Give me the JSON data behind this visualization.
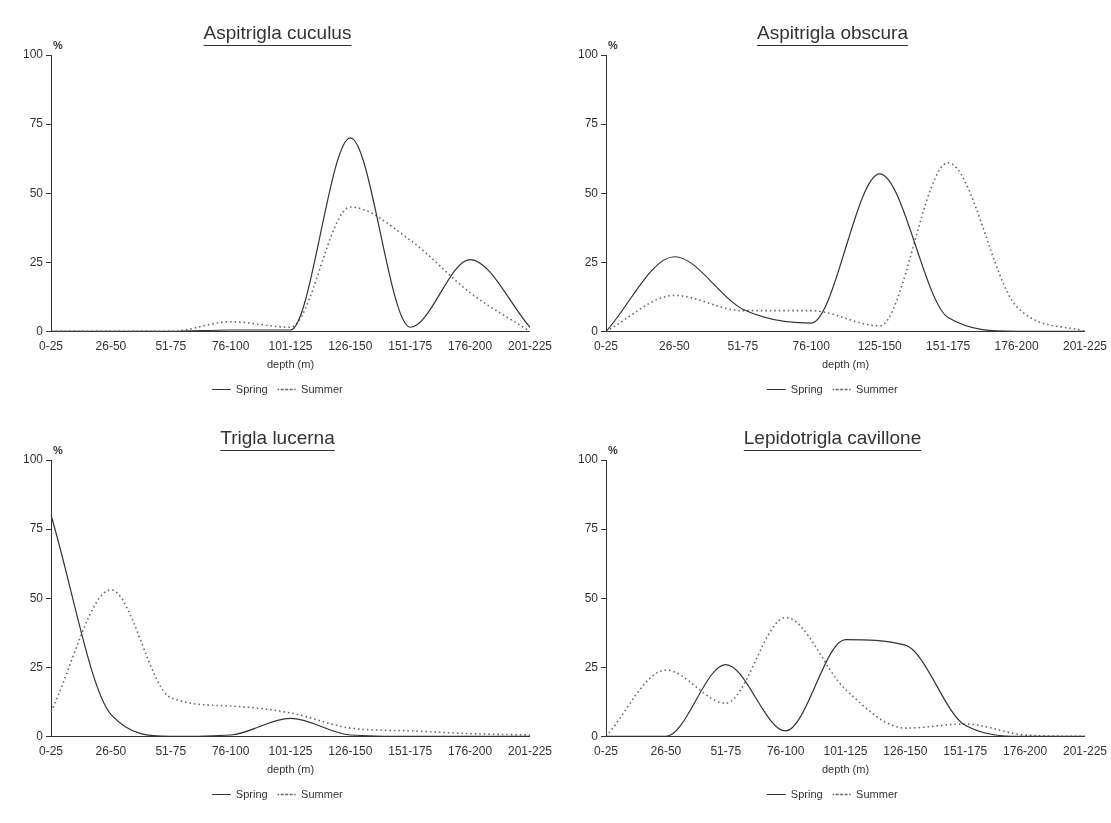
{
  "chart_data": [
    {
      "type": "line",
      "title": "Aspitrigla cuculus",
      "xlabel": "depth (m)",
      "ylabel": "%",
      "categories": [
        "0-25",
        "26-50",
        "51-75",
        "76-100",
        "101-125",
        "126-150",
        "151-175",
        "176-200",
        "201-225"
      ],
      "ylim": [
        0,
        100
      ],
      "yticks": [
        0,
        25,
        50,
        75,
        100
      ],
      "grid": false,
      "legend": "bottom",
      "marker": "none",
      "series": [
        {
          "name": "Spring",
          "color": "#333333",
          "line_style": "solid",
          "values": [
            0,
            0,
            0,
            0.5,
            0.5,
            70,
            1.5,
            26,
            1.5
          ]
        },
        {
          "name": "Summer",
          "color": "#666666",
          "line_style": "dotted",
          "values": [
            0,
            0,
            0,
            3.5,
            1.5,
            45,
            33,
            14,
            0
          ]
        }
      ]
    },
    {
      "type": "line",
      "title": "Aspitrigla obscura",
      "xlabel": "depth (m)",
      "ylabel": "%",
      "categories": [
        "0-25",
        "26-50",
        "51-75",
        "76-100",
        "125-150",
        "151-175",
        "176-200",
        "201-225"
      ],
      "ylim": [
        0,
        100
      ],
      "yticks": [
        0,
        25,
        50,
        75,
        100
      ],
      "grid": false,
      "legend": "bottom",
      "marker": "none",
      "series": [
        {
          "name": "Spring",
          "color": "#333333",
          "line_style": "solid",
          "values": [
            0,
            27,
            8,
            3,
            57,
            5,
            0,
            0
          ]
        },
        {
          "name": "Summer",
          "color": "#666666",
          "line_style": "dotted",
          "values": [
            0,
            13,
            7.5,
            7.5,
            2,
            61,
            9,
            0
          ]
        }
      ]
    },
    {
      "type": "line",
      "title": "Trigla lucerna",
      "xlabel": "depth (m)",
      "ylabel": "%",
      "categories": [
        "0-25",
        "26-50",
        "51-75",
        "76-100",
        "101-125",
        "126-150",
        "151-175",
        "176-200",
        "201-225"
      ],
      "ylim": [
        0,
        100
      ],
      "yticks": [
        0,
        25,
        50,
        75,
        100
      ],
      "grid": false,
      "legend": "bottom",
      "marker": "none",
      "series": [
        {
          "name": "Spring",
          "color": "#333333",
          "line_style": "solid",
          "values": [
            80,
            8,
            0,
            0.5,
            6.5,
            0.5,
            0,
            0,
            0
          ]
        },
        {
          "name": "Summer",
          "color": "#666666",
          "line_style": "dotted",
          "values": [
            9,
            53,
            14,
            11,
            8.5,
            3,
            2,
            1,
            0.5
          ]
        }
      ]
    },
    {
      "type": "line",
      "title": "Lepidotrigla cavillone",
      "xlabel": "depth (m)",
      "ylabel": "%",
      "categories": [
        "0-25",
        "26-50",
        "51-75",
        "76-100",
        "101-125",
        "126-150",
        "151-175",
        "176-200",
        "201-225"
      ],
      "ylim": [
        0,
        100
      ],
      "yticks": [
        0,
        25,
        50,
        75,
        100
      ],
      "grid": false,
      "legend": "bottom",
      "marker": "none",
      "series": [
        {
          "name": "Spring",
          "color": "#333333",
          "line_style": "solid",
          "values": [
            0,
            0,
            26,
            2,
            35,
            33,
            4,
            0,
            0
          ]
        },
        {
          "name": "Summer",
          "color": "#666666",
          "line_style": "dotted",
          "values": [
            0,
            24,
            12,
            43,
            17,
            3,
            4.5,
            0.5,
            0
          ]
        }
      ]
    }
  ]
}
